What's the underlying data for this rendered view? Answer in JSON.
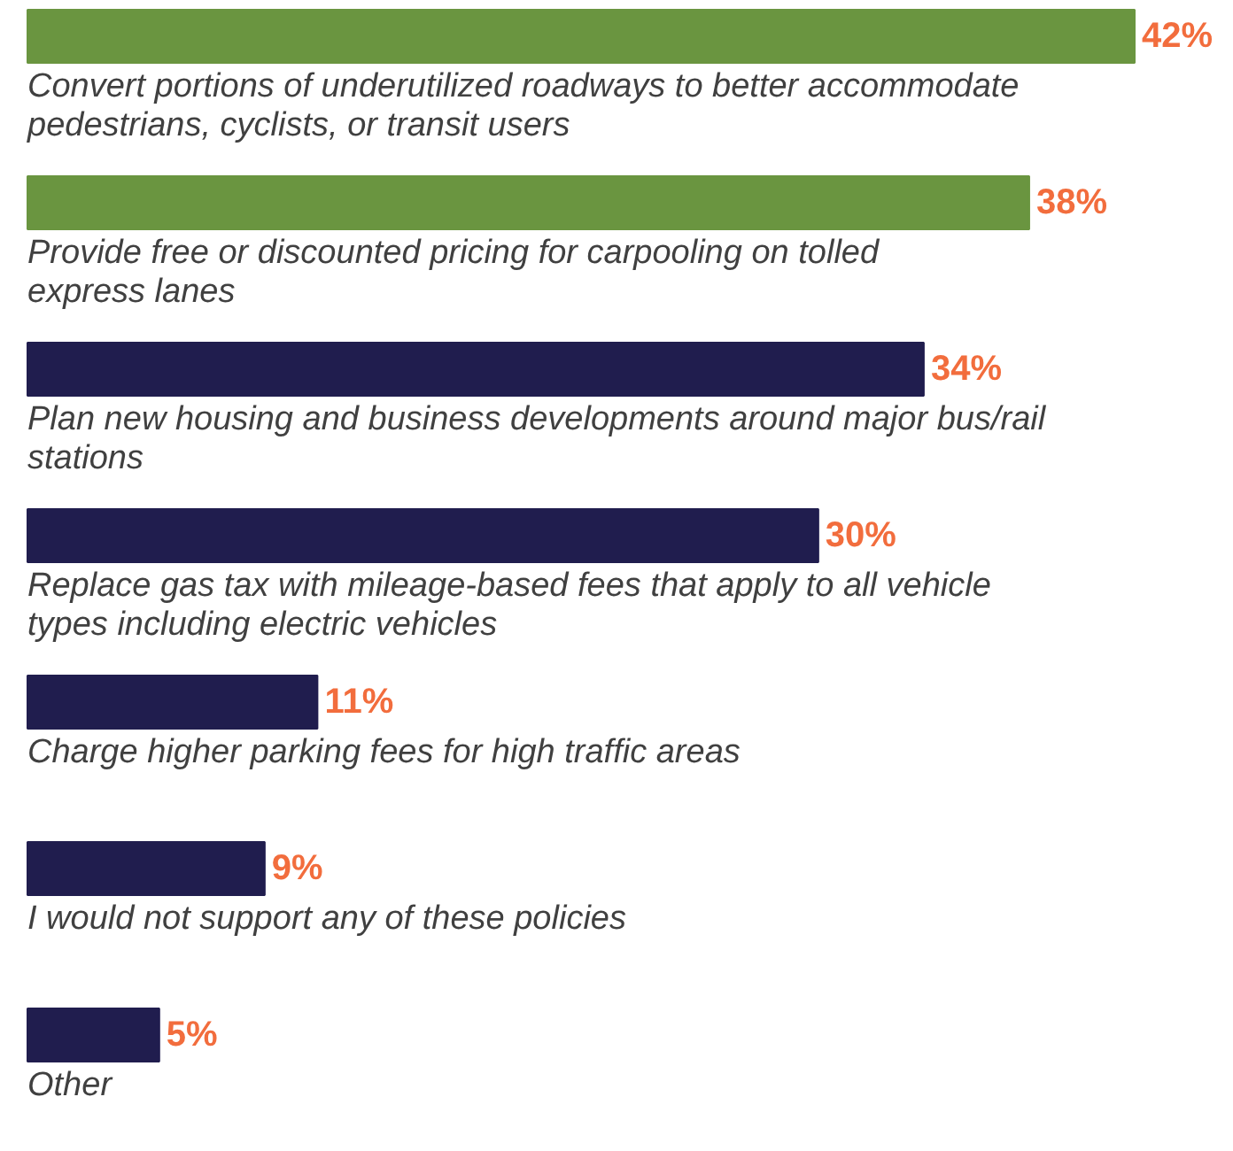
{
  "chart_data": {
    "type": "bar",
    "orientation": "horizontal",
    "categories": [
      "Convert portions of underutilized roadways to better accommodate pedestrians, cyclists, or transit users",
      "Provide free or discounted pricing for carpooling on tolled express lanes",
      "Plan new housing and business developments around major bus/rail stations",
      "Replace gas tax with mileage-based fees that apply to all vehicle types including electric vehicles",
      "Charge higher parking fees for high traffic areas",
      "I would not support any of these policies",
      "Other"
    ],
    "values": [
      42,
      38,
      34,
      30,
      11,
      9,
      5
    ],
    "value_labels": [
      "42%",
      "38%",
      "34%",
      "30%",
      "11%",
      "9%",
      "5%"
    ],
    "colors": [
      "#6a9540",
      "#6a9540",
      "#201d4e",
      "#201d4e",
      "#201d4e",
      "#201d4e",
      "#201d4e"
    ]
  }
}
